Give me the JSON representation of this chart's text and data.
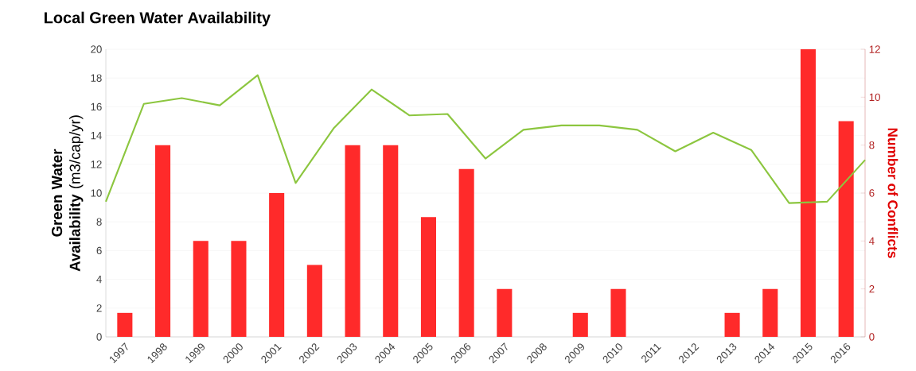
{
  "chart_data": {
    "type": "bar",
    "title": "Local Green Water Availability",
    "ylabel": "**Green Water Availability** (m3/cap/yr)",
    "y2label": "Number of Conflicts",
    "x": [
      1997,
      1998,
      1999,
      2000,
      2001,
      2002,
      2003,
      2004,
      2005,
      2006,
      2007,
      2008,
      2009,
      2010,
      2011,
      2012,
      2013,
      2014,
      2015,
      2016
    ],
    "xlim": [
      1996.5,
      2016.5
    ],
    "xticks": [
      1997,
      1998,
      1999,
      2000,
      2001,
      2002,
      2003,
      2004,
      2005,
      2006,
      2007,
      2008,
      2009,
      2010,
      2011,
      2012,
      2013,
      2014,
      2015,
      2016
    ],
    "ylim": [
      0,
      20
    ],
    "yticks": [
      0,
      2,
      4,
      6,
      8,
      10,
      12,
      14,
      16,
      18,
      20
    ],
    "y2lim": [
      0,
      12
    ],
    "y2ticks": [
      0,
      2,
      4,
      6,
      8,
      10,
      12
    ],
    "grid": "y",
    "series": [
      {
        "axis": "y2",
        "color": "#ff2a2a",
        "values": [
          1,
          8,
          4,
          4,
          6,
          3,
          8,
          8,
          5,
          7,
          2,
          0,
          1,
          2,
          0,
          0,
          1,
          2,
          12,
          9
        ]
      },
      {
        "type": "line",
        "color": "#8cc63f",
        "x": [
          1996.5,
          1997.5,
          1998.5,
          1999.5,
          2000.5,
          2001.5,
          2002.5,
          2003.5,
          2004.5,
          2005.5,
          2006.5,
          2007.5,
          2008.5,
          2009.5,
          2010.5,
          2011.5,
          2012.5,
          2013.5,
          2014.5,
          2015.5,
          2016.5
        ],
        "values": [
          9.4,
          16.2,
          16.6,
          16.1,
          18.2,
          10.7,
          14.5,
          17.2,
          15.4,
          15.5,
          12.4,
          14.4,
          14.7,
          14.7,
          14.4,
          12.9,
          14.2,
          13.0,
          9.3,
          9.4,
          12.3
        ]
      }
    ]
  }
}
